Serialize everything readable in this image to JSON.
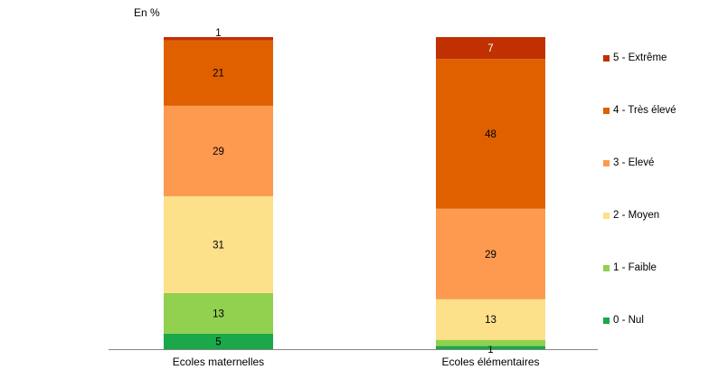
{
  "chart_data": {
    "type": "bar",
    "stacked": true,
    "unit_label": "En %",
    "categories": [
      "Ecoles maternelles",
      "Ecoles élémentaires"
    ],
    "series": [
      {
        "name": "0 - Nul",
        "color": "#1aa84b",
        "values": [
          5,
          1
        ]
      },
      {
        "name": "1 - Faible",
        "color": "#92d050",
        "values": [
          13,
          2
        ]
      },
      {
        "name": "2 - Moyen",
        "color": "#fde08a",
        "values": [
          31,
          13
        ]
      },
      {
        "name": "3 - Elevé",
        "color": "#fd9a4f",
        "values": [
          29,
          29
        ]
      },
      {
        "name": "4 - Très élevé",
        "color": "#e06000",
        "values": [
          21,
          48
        ]
      },
      {
        "name": "5 - Extrême",
        "color": "#c03000",
        "values": [
          1,
          7
        ]
      }
    ],
    "legend_position": "right",
    "grid": false
  }
}
